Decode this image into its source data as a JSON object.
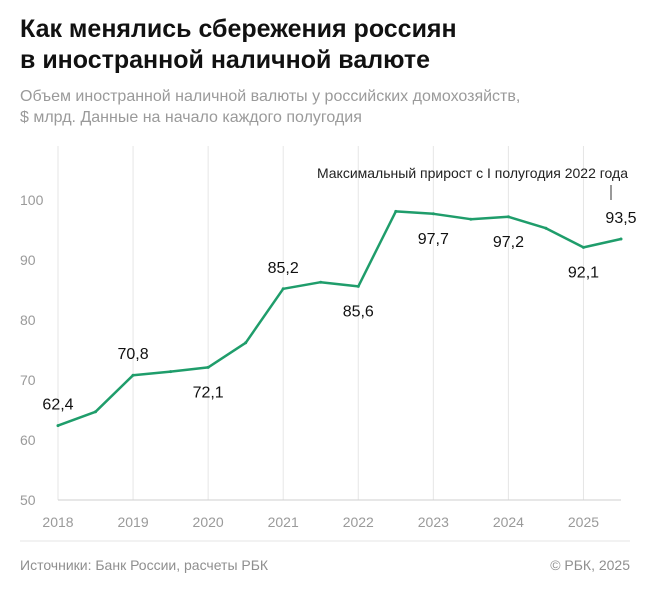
{
  "header": {
    "title_line1": "Как менялись сбережения россиян",
    "title_line2": "в иностранной наличной валюте",
    "subtitle_line1": "Объем иностранной наличной валюты у российских домохозяйств,",
    "subtitle_line2": "$ млрд. Данные на начало каждого полугодия"
  },
  "footer": {
    "source": "Источники: Банк России, расчеты РБК",
    "copyright": "© РБК, 2025"
  },
  "colors": {
    "line": "#1f9d6b",
    "grid": "#e6e6e6",
    "axis": "#cfcfcf"
  },
  "chart_data": {
    "type": "line",
    "title": "Как менялись сбережения россиян в иностранной наличной валюте",
    "subtitle": "Объем иностранной наличной валюты у российских домохозяйств, $ млрд. Данные на начало каждого полугодия",
    "xlabel": "",
    "ylabel": "",
    "x_ticks": [
      "2018",
      "2019",
      "2020",
      "2021",
      "2022",
      "2023",
      "2024",
      "2025"
    ],
    "y_ticks": [
      "50",
      "60",
      "70",
      "80",
      "90",
      "100"
    ],
    "ylim": [
      50,
      100
    ],
    "grid": "vertical",
    "x": [
      2018.0,
      2018.5,
      2019.0,
      2019.5,
      2020.0,
      2020.5,
      2021.0,
      2021.5,
      2022.0,
      2022.5,
      2023.0,
      2023.5,
      2024.0,
      2024.5,
      2025.0,
      2025.5
    ],
    "values": [
      62.4,
      64.7,
      70.8,
      71.4,
      72.1,
      76.2,
      85.2,
      86.3,
      85.6,
      98.1,
      97.7,
      96.8,
      97.2,
      95.3,
      92.1,
      93.5
    ],
    "data_labels": [
      {
        "text": "62,4",
        "x": 2018.0,
        "y": 62.4,
        "pos": "above"
      },
      {
        "text": "70,8",
        "x": 2019.0,
        "y": 70.8,
        "pos": "above"
      },
      {
        "text": "72,1",
        "x": 2020.0,
        "y": 72.1,
        "pos": "below"
      },
      {
        "text": "85,2",
        "x": 2021.0,
        "y": 85.2,
        "pos": "above"
      },
      {
        "text": "85,6",
        "x": 2022.0,
        "y": 85.6,
        "pos": "below"
      },
      {
        "text": "97,7",
        "x": 2023.0,
        "y": 97.7,
        "pos": "below"
      },
      {
        "text": "97,2",
        "x": 2024.0,
        "y": 97.2,
        "pos": "below"
      },
      {
        "text": "92,1",
        "x": 2025.0,
        "y": 92.1,
        "pos": "below"
      },
      {
        "text": "93,5",
        "x": 2025.5,
        "y": 93.5,
        "pos": "above"
      }
    ],
    "annotation": {
      "text": "Максимальный прирост с I полугодия 2022 года",
      "x": 2025.5
    }
  }
}
